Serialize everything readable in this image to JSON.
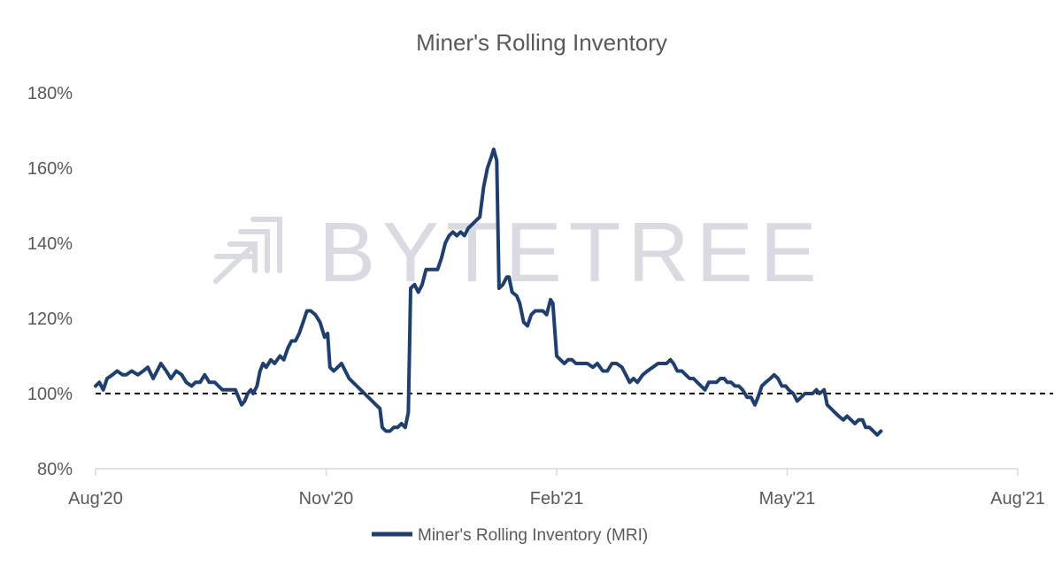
{
  "chart_data": {
    "type": "line",
    "title": "Miner's Rolling Inventory",
    "watermark": "BYTETREE",
    "y_ticks": [
      "80%",
      "100%",
      "120%",
      "140%",
      "160%",
      "180%"
    ],
    "ylim": [
      80,
      180
    ],
    "x_ticks": [
      {
        "label": "Aug'20",
        "t": 0
      },
      {
        "label": "Nov'20",
        "t": 3
      },
      {
        "label": "Feb'21",
        "t": 6
      },
      {
        "label": "May'21",
        "t": 9
      },
      {
        "label": "Aug'21",
        "t": 12
      }
    ],
    "reference_line": {
      "value": 100,
      "style": "dashed"
    },
    "series": [
      {
        "name": "Miner's Rolling Inventory (MRI)",
        "color": "#1f3f6e",
        "points": [
          [
            0.0,
            102
          ],
          [
            0.05,
            103
          ],
          [
            0.1,
            101
          ],
          [
            0.15,
            104
          ],
          [
            0.22,
            105
          ],
          [
            0.28,
            106
          ],
          [
            0.35,
            105
          ],
          [
            0.4,
            105
          ],
          [
            0.47,
            106
          ],
          [
            0.55,
            105
          ],
          [
            0.62,
            106
          ],
          [
            0.68,
            107
          ],
          [
            0.75,
            104
          ],
          [
            0.8,
            106
          ],
          [
            0.85,
            108
          ],
          [
            0.92,
            106
          ],
          [
            0.98,
            104
          ],
          [
            1.05,
            106
          ],
          [
            1.12,
            105
          ],
          [
            1.18,
            103
          ],
          [
            1.25,
            102
          ],
          [
            1.3,
            103
          ],
          [
            1.36,
            103
          ],
          [
            1.42,
            105
          ],
          [
            1.48,
            103
          ],
          [
            1.55,
            103
          ],
          [
            1.6,
            102
          ],
          [
            1.65,
            101
          ],
          [
            1.72,
            101
          ],
          [
            1.78,
            101
          ],
          [
            1.82,
            101
          ],
          [
            1.86,
            99
          ],
          [
            1.9,
            97
          ],
          [
            1.94,
            98
          ],
          [
            1.98,
            100
          ],
          [
            2.02,
            101
          ],
          [
            2.05,
            100
          ],
          [
            2.1,
            102
          ],
          [
            2.14,
            106
          ],
          [
            2.18,
            108
          ],
          [
            2.22,
            107
          ],
          [
            2.28,
            109
          ],
          [
            2.33,
            108
          ],
          [
            2.4,
            110
          ],
          [
            2.45,
            109
          ],
          [
            2.5,
            112
          ],
          [
            2.55,
            114
          ],
          [
            2.6,
            114
          ],
          [
            2.65,
            116
          ],
          [
            2.7,
            119
          ],
          [
            2.75,
            122
          ],
          [
            2.8,
            122
          ],
          [
            2.86,
            121
          ],
          [
            2.92,
            119
          ],
          [
            2.98,
            115
          ],
          [
            3.02,
            116
          ],
          [
            3.05,
            107
          ],
          [
            3.1,
            106
          ],
          [
            3.15,
            107
          ],
          [
            3.2,
            108
          ],
          [
            3.25,
            106
          ],
          [
            3.3,
            104
          ],
          [
            3.35,
            103
          ],
          [
            3.4,
            102
          ],
          [
            3.45,
            101
          ],
          [
            3.5,
            100
          ],
          [
            3.55,
            99
          ],
          [
            3.6,
            98
          ],
          [
            3.65,
            97
          ],
          [
            3.7,
            96
          ],
          [
            3.73,
            91
          ],
          [
            3.78,
            90
          ],
          [
            3.83,
            90
          ],
          [
            3.88,
            91
          ],
          [
            3.93,
            91
          ],
          [
            3.98,
            92
          ],
          [
            4.03,
            91
          ],
          [
            4.07,
            95
          ],
          [
            4.1,
            128
          ],
          [
            4.15,
            129
          ],
          [
            4.2,
            127
          ],
          [
            4.25,
            129
          ],
          [
            4.3,
            133
          ],
          [
            4.35,
            133
          ],
          [
            4.4,
            133
          ],
          [
            4.45,
            133
          ],
          [
            4.5,
            136
          ],
          [
            4.55,
            140
          ],
          [
            4.6,
            142
          ],
          [
            4.65,
            143
          ],
          [
            4.7,
            142
          ],
          [
            4.75,
            143
          ],
          [
            4.8,
            142
          ],
          [
            4.85,
            144
          ],
          [
            4.9,
            145
          ],
          [
            4.95,
            146
          ],
          [
            5.0,
            147
          ],
          [
            5.05,
            155
          ],
          [
            5.1,
            160
          ],
          [
            5.15,
            163
          ],
          [
            5.18,
            165
          ],
          [
            5.22,
            162
          ],
          [
            5.25,
            128
          ],
          [
            5.3,
            129
          ],
          [
            5.35,
            131
          ],
          [
            5.38,
            131
          ],
          [
            5.42,
            127
          ],
          [
            5.48,
            126
          ],
          [
            5.52,
            124
          ],
          [
            5.57,
            119
          ],
          [
            5.62,
            118
          ],
          [
            5.67,
            121
          ],
          [
            5.72,
            122
          ],
          [
            5.77,
            122
          ],
          [
            5.82,
            122
          ],
          [
            5.87,
            121
          ],
          [
            5.92,
            125
          ],
          [
            5.95,
            124
          ],
          [
            6.0,
            110
          ],
          [
            6.05,
            109
          ],
          [
            6.1,
            108
          ],
          [
            6.15,
            109
          ],
          [
            6.2,
            109
          ],
          [
            6.25,
            108
          ],
          [
            6.32,
            108
          ],
          [
            6.4,
            108
          ],
          [
            6.47,
            107
          ],
          [
            6.53,
            108
          ],
          [
            6.6,
            106
          ],
          [
            6.66,
            106
          ],
          [
            6.72,
            108
          ],
          [
            6.78,
            108
          ],
          [
            6.85,
            107
          ],
          [
            6.9,
            105
          ],
          [
            6.95,
            103
          ],
          [
            7.0,
            104
          ],
          [
            7.05,
            103
          ],
          [
            7.12,
            105
          ],
          [
            7.18,
            106
          ],
          [
            7.25,
            107
          ],
          [
            7.32,
            108
          ],
          [
            7.38,
            108
          ],
          [
            7.43,
            108
          ],
          [
            7.48,
            109
          ],
          [
            7.52,
            108
          ],
          [
            7.57,
            106
          ],
          [
            7.63,
            106
          ],
          [
            7.68,
            105
          ],
          [
            7.73,
            104
          ],
          [
            7.78,
            104
          ],
          [
            7.83,
            103
          ],
          [
            7.88,
            102
          ],
          [
            7.93,
            101
          ],
          [
            7.98,
            103
          ],
          [
            8.03,
            103
          ],
          [
            8.08,
            103
          ],
          [
            8.13,
            104
          ],
          [
            8.18,
            104
          ],
          [
            8.22,
            103
          ],
          [
            8.27,
            103
          ],
          [
            8.32,
            102
          ],
          [
            8.37,
            102
          ],
          [
            8.42,
            101
          ],
          [
            8.48,
            99
          ],
          [
            8.53,
            99
          ],
          [
            8.58,
            97
          ],
          [
            8.62,
            99
          ],
          [
            8.67,
            102
          ],
          [
            8.72,
            103
          ],
          [
            8.78,
            104
          ],
          [
            8.83,
            105
          ],
          [
            8.88,
            104
          ],
          [
            8.93,
            102
          ],
          [
            8.98,
            102
          ],
          [
            9.02,
            101
          ],
          [
            9.08,
            100
          ],
          [
            9.13,
            98
          ],
          [
            9.18,
            99
          ],
          [
            9.23,
            100
          ],
          [
            9.28,
            100
          ],
          [
            9.33,
            100
          ],
          [
            9.38,
            101
          ],
          [
            9.42,
            100
          ],
          [
            9.48,
            101
          ],
          [
            9.52,
            97
          ],
          [
            9.57,
            96
          ],
          [
            9.62,
            95
          ],
          [
            9.67,
            94
          ],
          [
            9.73,
            93
          ],
          [
            9.78,
            94
          ],
          [
            9.83,
            93
          ],
          [
            9.88,
            92
          ],
          [
            9.93,
            93
          ],
          [
            9.98,
            93
          ],
          [
            10.02,
            91
          ],
          [
            10.07,
            91
          ],
          [
            10.12,
            90
          ],
          [
            10.17,
            89
          ],
          [
            10.22,
            90
          ]
        ]
      }
    ]
  }
}
